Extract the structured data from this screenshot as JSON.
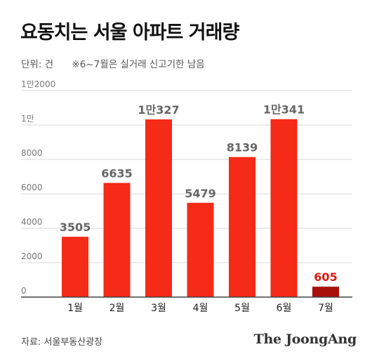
{
  "header": {
    "title": "요동치는 서울 아파트 거래량",
    "unit": "단위: 건",
    "note": "※6~7월은 실거래 신고기한 남음"
  },
  "footer": {
    "source": "자료: 서울부동산광장",
    "brand": "The JoongAng"
  },
  "colors": {
    "bar": "#f52a17",
    "highlight_bar": "#a8100b",
    "highlight_label": "#d81a12",
    "label": "#666666",
    "grid": "#d9d9d9"
  },
  "chart_data": {
    "type": "bar",
    "categories": [
      "1월",
      "2월",
      "3월",
      "4월",
      "5월",
      "6월",
      "7월"
    ],
    "values": [
      3505,
      6635,
      10327,
      5479,
      8139,
      10341,
      605
    ],
    "data_labels": [
      "3505",
      "6635",
      "1만327",
      "5479",
      "8139",
      "1만341",
      "605"
    ],
    "highlight_index": 6,
    "ylim": [
      0,
      12000
    ],
    "yticks": [
      0,
      2000,
      4000,
      6000,
      8000,
      10000,
      12000
    ],
    "ytick_labels": [
      "0",
      "2000",
      "4000",
      "6000",
      "8000",
      "1만",
      "1만2000"
    ],
    "grid": true
  }
}
